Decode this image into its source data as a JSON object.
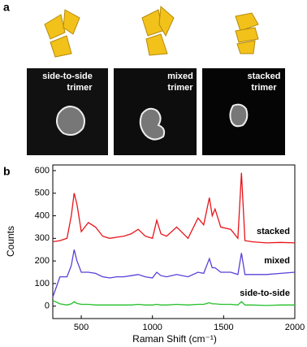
{
  "panel_a": {
    "label": "a",
    "images": [
      {
        "lines": [
          "side-to-side",
          "trimer"
        ]
      },
      {
        "lines": [
          "mixed",
          "trimer"
        ]
      },
      {
        "lines": [
          "stacked",
          "trimer"
        ]
      }
    ]
  },
  "panel_b": {
    "label": "b"
  },
  "chart_data": {
    "type": "line",
    "xlabel": "Raman Shift (cm⁻¹)",
    "ylabel": "Counts",
    "xlim": [
      300,
      2000
    ],
    "ylim": [
      -55,
      625
    ],
    "xticks": [
      500,
      1000,
      1500,
      2000
    ],
    "yticks": [
      0,
      100,
      200,
      300,
      400,
      500,
      600
    ],
    "x": [
      300,
      350,
      400,
      430,
      450,
      470,
      500,
      550,
      600,
      650,
      700,
      750,
      800,
      850,
      900,
      950,
      1000,
      1030,
      1060,
      1100,
      1170,
      1250,
      1320,
      1360,
      1400,
      1420,
      1440,
      1480,
      1550,
      1600,
      1625,
      1650,
      1700,
      1800,
      1900,
      2000
    ],
    "series": [
      {
        "name": "stacked",
        "color": "#e8141a",
        "values": [
          285,
          290,
          300,
          400,
          500,
          450,
          330,
          370,
          350,
          310,
          300,
          305,
          310,
          320,
          340,
          310,
          300,
          380,
          320,
          310,
          350,
          300,
          390,
          360,
          480,
          400,
          430,
          350,
          340,
          300,
          590,
          290,
          285,
          280,
          282,
          280
        ]
      },
      {
        "name": "mixed",
        "color": "#5b3fd6",
        "values": [
          40,
          130,
          130,
          180,
          250,
          200,
          150,
          150,
          145,
          130,
          125,
          130,
          130,
          135,
          140,
          130,
          125,
          150,
          135,
          130,
          140,
          130,
          150,
          145,
          210,
          170,
          170,
          150,
          150,
          140,
          235,
          140,
          140,
          140,
          145,
          150
        ]
      },
      {
        "name": "side-to-side",
        "color": "#22c02a",
        "values": [
          25,
          10,
          5,
          10,
          20,
          12,
          8,
          8,
          5,
          5,
          5,
          5,
          5,
          5,
          8,
          5,
          5,
          8,
          5,
          5,
          8,
          5,
          8,
          8,
          15,
          10,
          10,
          8,
          8,
          5,
          20,
          5,
          5,
          3,
          5,
          5
        ]
      }
    ]
  }
}
